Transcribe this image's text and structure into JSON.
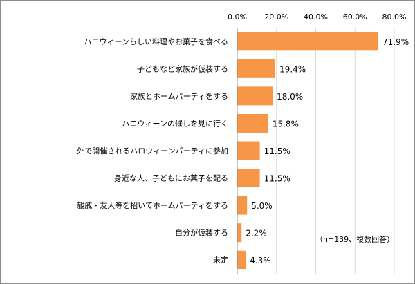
{
  "chart_data": {
    "type": "bar",
    "orientation": "horizontal",
    "categories": [
      "ハロウィーンらしい料理やお菓子を食べる",
      "子どもなど家族が仮装する",
      "家族とホームパーティをする",
      "ハロウィーンの催しを見に行く",
      "外で開催されるハロウィーンパーティに参加",
      "身近な人、子どもにお菓子を配る",
      "親戚・友人等を招いてホームパーティをする",
      "自分が仮装する",
      "未定"
    ],
    "values": [
      71.9,
      19.4,
      18.0,
      15.8,
      11.5,
      11.5,
      5.0,
      2.2,
      4.3
    ],
    "data_labels": [
      "71.9%",
      "19.4%",
      "18.0%",
      "15.8%",
      "11.5%",
      "11.5%",
      "5.0%",
      "2.2%",
      "4.3%"
    ],
    "x_ticks": [
      "0.0%",
      "20.0%",
      "40.0%",
      "60.0%",
      "80.0%"
    ],
    "xlim": [
      0,
      80
    ],
    "axis_position": "top",
    "grid": true,
    "bar_color": "#f79646",
    "annotation": "（n=139、複数回答）"
  }
}
